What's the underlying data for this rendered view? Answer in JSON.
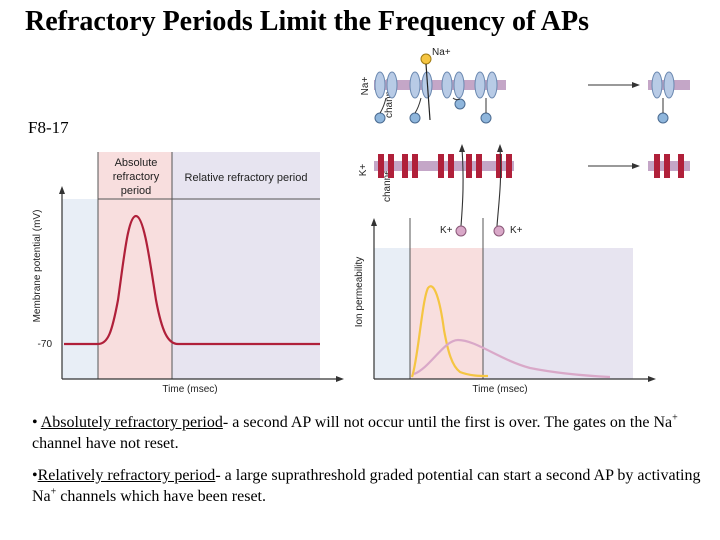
{
  "title": "Refractory Periods Limit the Frequency of APs",
  "figure_label": "F8-17",
  "figure": {
    "absolute_period_label": [
      "Absolute",
      "refractory",
      "period"
    ],
    "relative_period_label": "Relative refractory period",
    "membrane_ylabel": "Membrane potential (mV)",
    "resting_potential": "-70",
    "time_label_left": "Time (msec)",
    "time_label_right": "Time (msec)",
    "ion_ylabel": "Ion permeability",
    "na_ion": "Na+",
    "na_channels_label": [
      "Na+",
      "channels"
    ],
    "k_channels_label": [
      "K+",
      "channels"
    ],
    "k_ion_1": "K+",
    "k_ion_2": "K+",
    "colors": {
      "absolute_band": "#f8dede",
      "relative_band": "#e7e4f0",
      "rest_band": "#e8eef6",
      "membrane_trace": "#b0203a",
      "na_permeability": "#f5c542",
      "k_permeability": "#d9a8c8",
      "na_channel": "#b8cbe6",
      "k_channel": "#b0203a"
    }
  },
  "notes": [
    {
      "bullet": "• ",
      "term": "Absolutely refractory period",
      "text_before_sup": "- a second AP will not occur until the first is over. The gates on the Na",
      "sup": "+",
      "text_after_sup": " channel have not reset."
    },
    {
      "bullet": "•",
      "term": "Relatively refractory period",
      "text_before_sup": "- a large suprathreshold graded potential can start a second AP by activating Na",
      "sup": "+",
      "text_after_sup": " channels which have been reset."
    }
  ]
}
